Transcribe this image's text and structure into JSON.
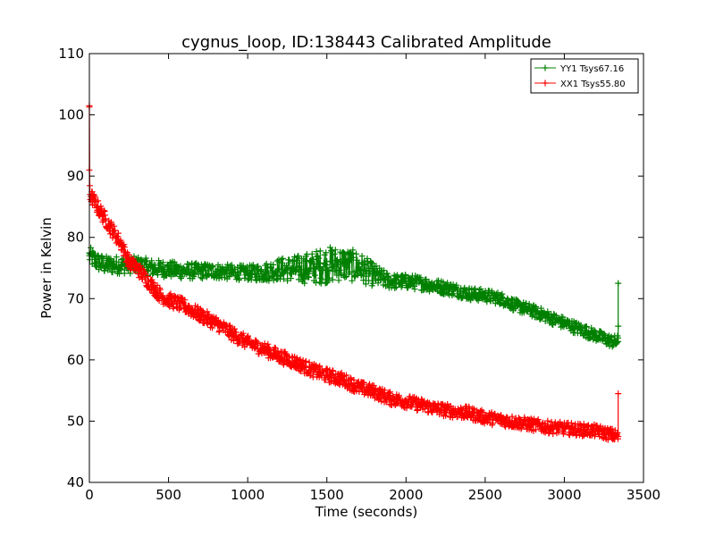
{
  "chart_data": {
    "type": "line",
    "title": "cygnus_loop, ID:138443 Calibrated Amplitude",
    "xlabel": "Time (seconds)",
    "ylabel": "Power in Kelvin",
    "xlim": [
      0,
      3500
    ],
    "ylim": [
      40,
      110
    ],
    "xticks": [
      "0",
      "500",
      "1000",
      "1500",
      "2000",
      "2500",
      "3000",
      "3500"
    ],
    "yticks": [
      "40",
      "50",
      "60",
      "70",
      "80",
      "90",
      "100",
      "110"
    ],
    "grid": false,
    "legend_position": "top-right",
    "marker": "+",
    "series": [
      {
        "name": "YY1 Tsys67.16",
        "color": "#008000",
        "points": [
          [
            0,
            77
          ],
          [
            50,
            76
          ],
          [
            100,
            75.5
          ],
          [
            200,
            75.5
          ],
          [
            300,
            75.5
          ],
          [
            400,
            75
          ],
          [
            500,
            74.8
          ],
          [
            600,
            74.5
          ],
          [
            700,
            74.5
          ],
          [
            800,
            74.5
          ],
          [
            900,
            74.3
          ],
          [
            1000,
            74.2
          ],
          [
            1100,
            74.3
          ],
          [
            1200,
            74.8
          ],
          [
            1300,
            74.8
          ],
          [
            1400,
            75
          ],
          [
            1500,
            75.5
          ],
          [
            1600,
            75.7
          ],
          [
            1700,
            75.2
          ],
          [
            1800,
            73.8
          ],
          [
            1900,
            72.8
          ],
          [
            2000,
            72.8
          ],
          [
            2100,
            72.5
          ],
          [
            2200,
            72
          ],
          [
            2300,
            71.5
          ],
          [
            2400,
            70.8
          ],
          [
            2500,
            70.5
          ],
          [
            2600,
            70
          ],
          [
            2700,
            68.8
          ],
          [
            2800,
            68
          ],
          [
            2900,
            67
          ],
          [
            3000,
            66
          ],
          [
            3100,
            65
          ],
          [
            3200,
            64
          ],
          [
            3300,
            63
          ],
          [
            3340,
            63
          ],
          [
            3340,
            65.5
          ],
          [
            3340,
            72.5
          ]
        ],
        "spread": [
          [
            0,
            1.5
          ],
          [
            1000,
            1.2
          ],
          [
            1200,
            1.8
          ],
          [
            1500,
            3
          ],
          [
            1700,
            2.5
          ],
          [
            1900,
            1.2
          ],
          [
            2600,
            1
          ],
          [
            3340,
            1
          ]
        ]
      },
      {
        "name": "XX1 Tsys55.80",
        "color": "#ff0000",
        "points": [
          [
            0,
            101.5
          ],
          [
            0,
            91
          ],
          [
            5,
            87
          ],
          [
            50,
            85
          ],
          [
            100,
            83
          ],
          [
            150,
            81
          ],
          [
            200,
            79
          ],
          [
            250,
            76
          ],
          [
            300,
            75
          ],
          [
            350,
            73.5
          ],
          [
            400,
            72
          ],
          [
            450,
            70.5
          ],
          [
            500,
            69.8
          ],
          [
            600,
            68.8
          ],
          [
            700,
            67.3
          ],
          [
            800,
            66
          ],
          [
            900,
            64.3
          ],
          [
            1000,
            62.8
          ],
          [
            1100,
            61.8
          ],
          [
            1200,
            60.6
          ],
          [
            1300,
            59.6
          ],
          [
            1400,
            58.4
          ],
          [
            1500,
            57.5
          ],
          [
            1600,
            56.8
          ],
          [
            1700,
            55.5
          ],
          [
            1800,
            54.8
          ],
          [
            1900,
            53.7
          ],
          [
            2000,
            53.2
          ],
          [
            2100,
            52.6
          ],
          [
            2200,
            52
          ],
          [
            2300,
            51.6
          ],
          [
            2400,
            51.3
          ],
          [
            2500,
            50.6
          ],
          [
            2600,
            50.2
          ],
          [
            2700,
            49.8
          ],
          [
            2800,
            49.4
          ],
          [
            2900,
            49
          ],
          [
            3000,
            48.8
          ],
          [
            3100,
            48.6
          ],
          [
            3200,
            48.4
          ],
          [
            3300,
            47.8
          ],
          [
            3340,
            47.5
          ],
          [
            3340,
            54.5
          ]
        ],
        "spread": [
          [
            0,
            1.2
          ],
          [
            3340,
            1
          ]
        ]
      }
    ]
  }
}
